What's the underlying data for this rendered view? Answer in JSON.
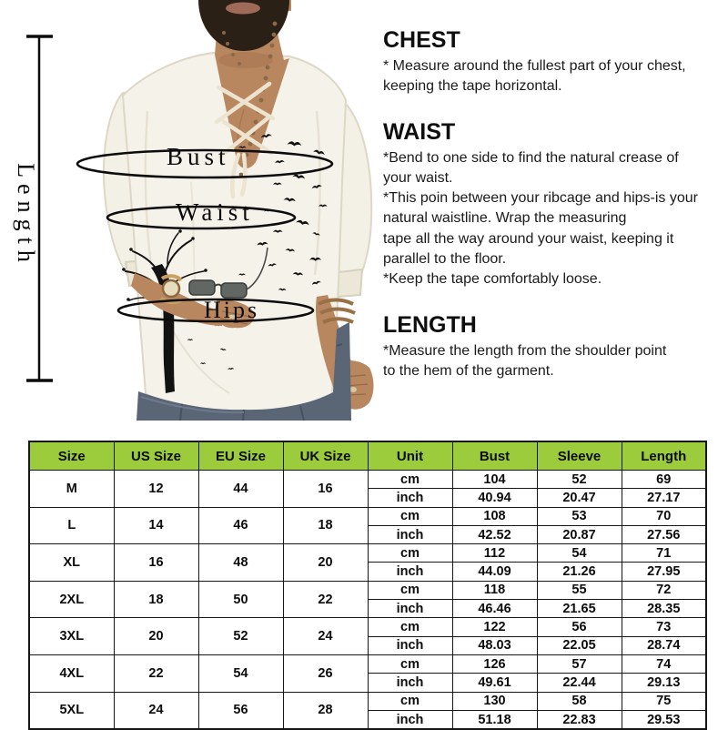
{
  "figure": {
    "labels": {
      "bust": "Bust",
      "waist": "Waist",
      "hips": "Hips",
      "length": "Length"
    }
  },
  "instructions": {
    "sections": [
      {
        "heading": "CHEST",
        "lines": [
          "* Measure around the fullest part of your chest,",
          "keeping the tape horizontal."
        ]
      },
      {
        "heading": "WAIST",
        "lines": [
          "*Bend to one side to find the natural crease of",
          "your waist.",
          "*This poin between your ribcage and hips-is your",
          "natural waistline. Wrap the measuring",
          "tape all the way around your waist, keeping it",
          "parallel to the floor.",
          "*Keep the tape comfortably loose."
        ]
      },
      {
        "heading": "LENGTH",
        "lines": [
          "*Measure the length from the shoulder point",
          "to the hem of the garment."
        ]
      }
    ]
  },
  "size_table": {
    "header_bg": "#9CCB3B",
    "border_color": "#161616",
    "header": [
      "Size",
      "US Size",
      "EU Size",
      "UK Size",
      "Unit",
      "Bust",
      "Sleeve",
      "Length"
    ],
    "unit_labels": [
      "cm",
      "inch"
    ],
    "rows": [
      {
        "size": "M",
        "us": "12",
        "eu": "44",
        "uk": "16",
        "cm": [
          "104",
          "52",
          "69"
        ],
        "inch": [
          "40.94",
          "20.47",
          "27.17"
        ]
      },
      {
        "size": "L",
        "us": "14",
        "eu": "46",
        "uk": "18",
        "cm": [
          "108",
          "53",
          "70"
        ],
        "inch": [
          "42.52",
          "20.87",
          "27.56"
        ]
      },
      {
        "size": "XL",
        "us": "16",
        "eu": "48",
        "uk": "20",
        "cm": [
          "112",
          "54",
          "71"
        ],
        "inch": [
          "44.09",
          "21.26",
          "27.95"
        ]
      },
      {
        "size": "2XL",
        "us": "18",
        "eu": "50",
        "uk": "22",
        "cm": [
          "118",
          "55",
          "72"
        ],
        "inch": [
          "46.46",
          "21.65",
          "28.35"
        ]
      },
      {
        "size": "3XL",
        "us": "20",
        "eu": "52",
        "uk": "24",
        "cm": [
          "122",
          "56",
          "73"
        ],
        "inch": [
          "48.03",
          "22.05",
          "28.74"
        ]
      },
      {
        "size": "4XL",
        "us": "22",
        "eu": "54",
        "uk": "26",
        "cm": [
          "126",
          "57",
          "74"
        ],
        "inch": [
          "49.61",
          "22.44",
          "29.13"
        ]
      },
      {
        "size": "5XL",
        "us": "24",
        "eu": "56",
        "uk": "28",
        "cm": [
          "130",
          "58",
          "75"
        ],
        "inch": [
          "51.18",
          "22.83",
          "29.53"
        ]
      }
    ]
  }
}
